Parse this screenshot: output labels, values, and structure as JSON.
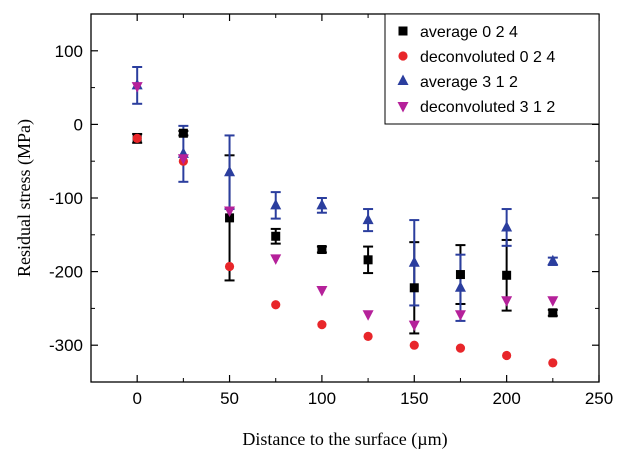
{
  "chart_data": {
    "type": "scatter",
    "title": "",
    "xlabel": "Distance to the surface (µm)",
    "ylabel": "Residual  stress (MPa)",
    "xlim": [
      -25,
      250
    ],
    "ylim": [
      -350,
      150
    ],
    "xticks": [
      0,
      50,
      100,
      150,
      200,
      250
    ],
    "yticks": [
      100,
      0,
      -100,
      -200,
      -300
    ],
    "xtick_labels": [
      "0",
      "50",
      "100",
      "150",
      "200",
      "250"
    ],
    "ytick_labels": [
      "100",
      "0",
      "-100",
      "-200",
      "-300"
    ],
    "grid": false,
    "legend_position": "top-right",
    "series": [
      {
        "name": "average 0 2 4",
        "marker": "square",
        "color": "#000000",
        "x": [
          0,
          25,
          50,
          75,
          100,
          125,
          150,
          175,
          200,
          225
        ],
        "y": [
          -19,
          -12,
          -127,
          -152,
          -170,
          -184,
          -222,
          -204,
          -205,
          -256
        ],
        "err": [
          6,
          3,
          85,
          10,
          4,
          18,
          62,
          40,
          48,
          4
        ]
      },
      {
        "name": "deconvoluted 0 2 4",
        "marker": "circle",
        "color": "#e8262a",
        "x": [
          0,
          25,
          50,
          75,
          100,
          125,
          150,
          175,
          200,
          225
        ],
        "y": [
          -19,
          -50,
          -193,
          -245,
          -272,
          -288,
          -300,
          -304,
          -314,
          -324
        ]
      },
      {
        "name": "average 3 1 2",
        "marker": "triangle-up",
        "color": "#2b3e9e",
        "x": [
          0,
          25,
          50,
          75,
          100,
          125,
          150,
          175,
          200,
          225
        ],
        "y": [
          53,
          -40,
          -65,
          -110,
          -110,
          -130,
          -188,
          -222,
          -140,
          -186
        ],
        "err": [
          25,
          38,
          50,
          18,
          10,
          15,
          58,
          45,
          25,
          5
        ]
      },
      {
        "name": "deconvoluted 3 1 2",
        "marker": "triangle-down",
        "color": "#b5219a",
        "x": [
          0,
          25,
          50,
          75,
          100,
          125,
          150,
          175,
          200,
          225
        ],
        "y": [
          52,
          -46,
          -117,
          -182,
          -225,
          -258,
          -272,
          -258,
          -239,
          -239
        ]
      }
    ]
  }
}
